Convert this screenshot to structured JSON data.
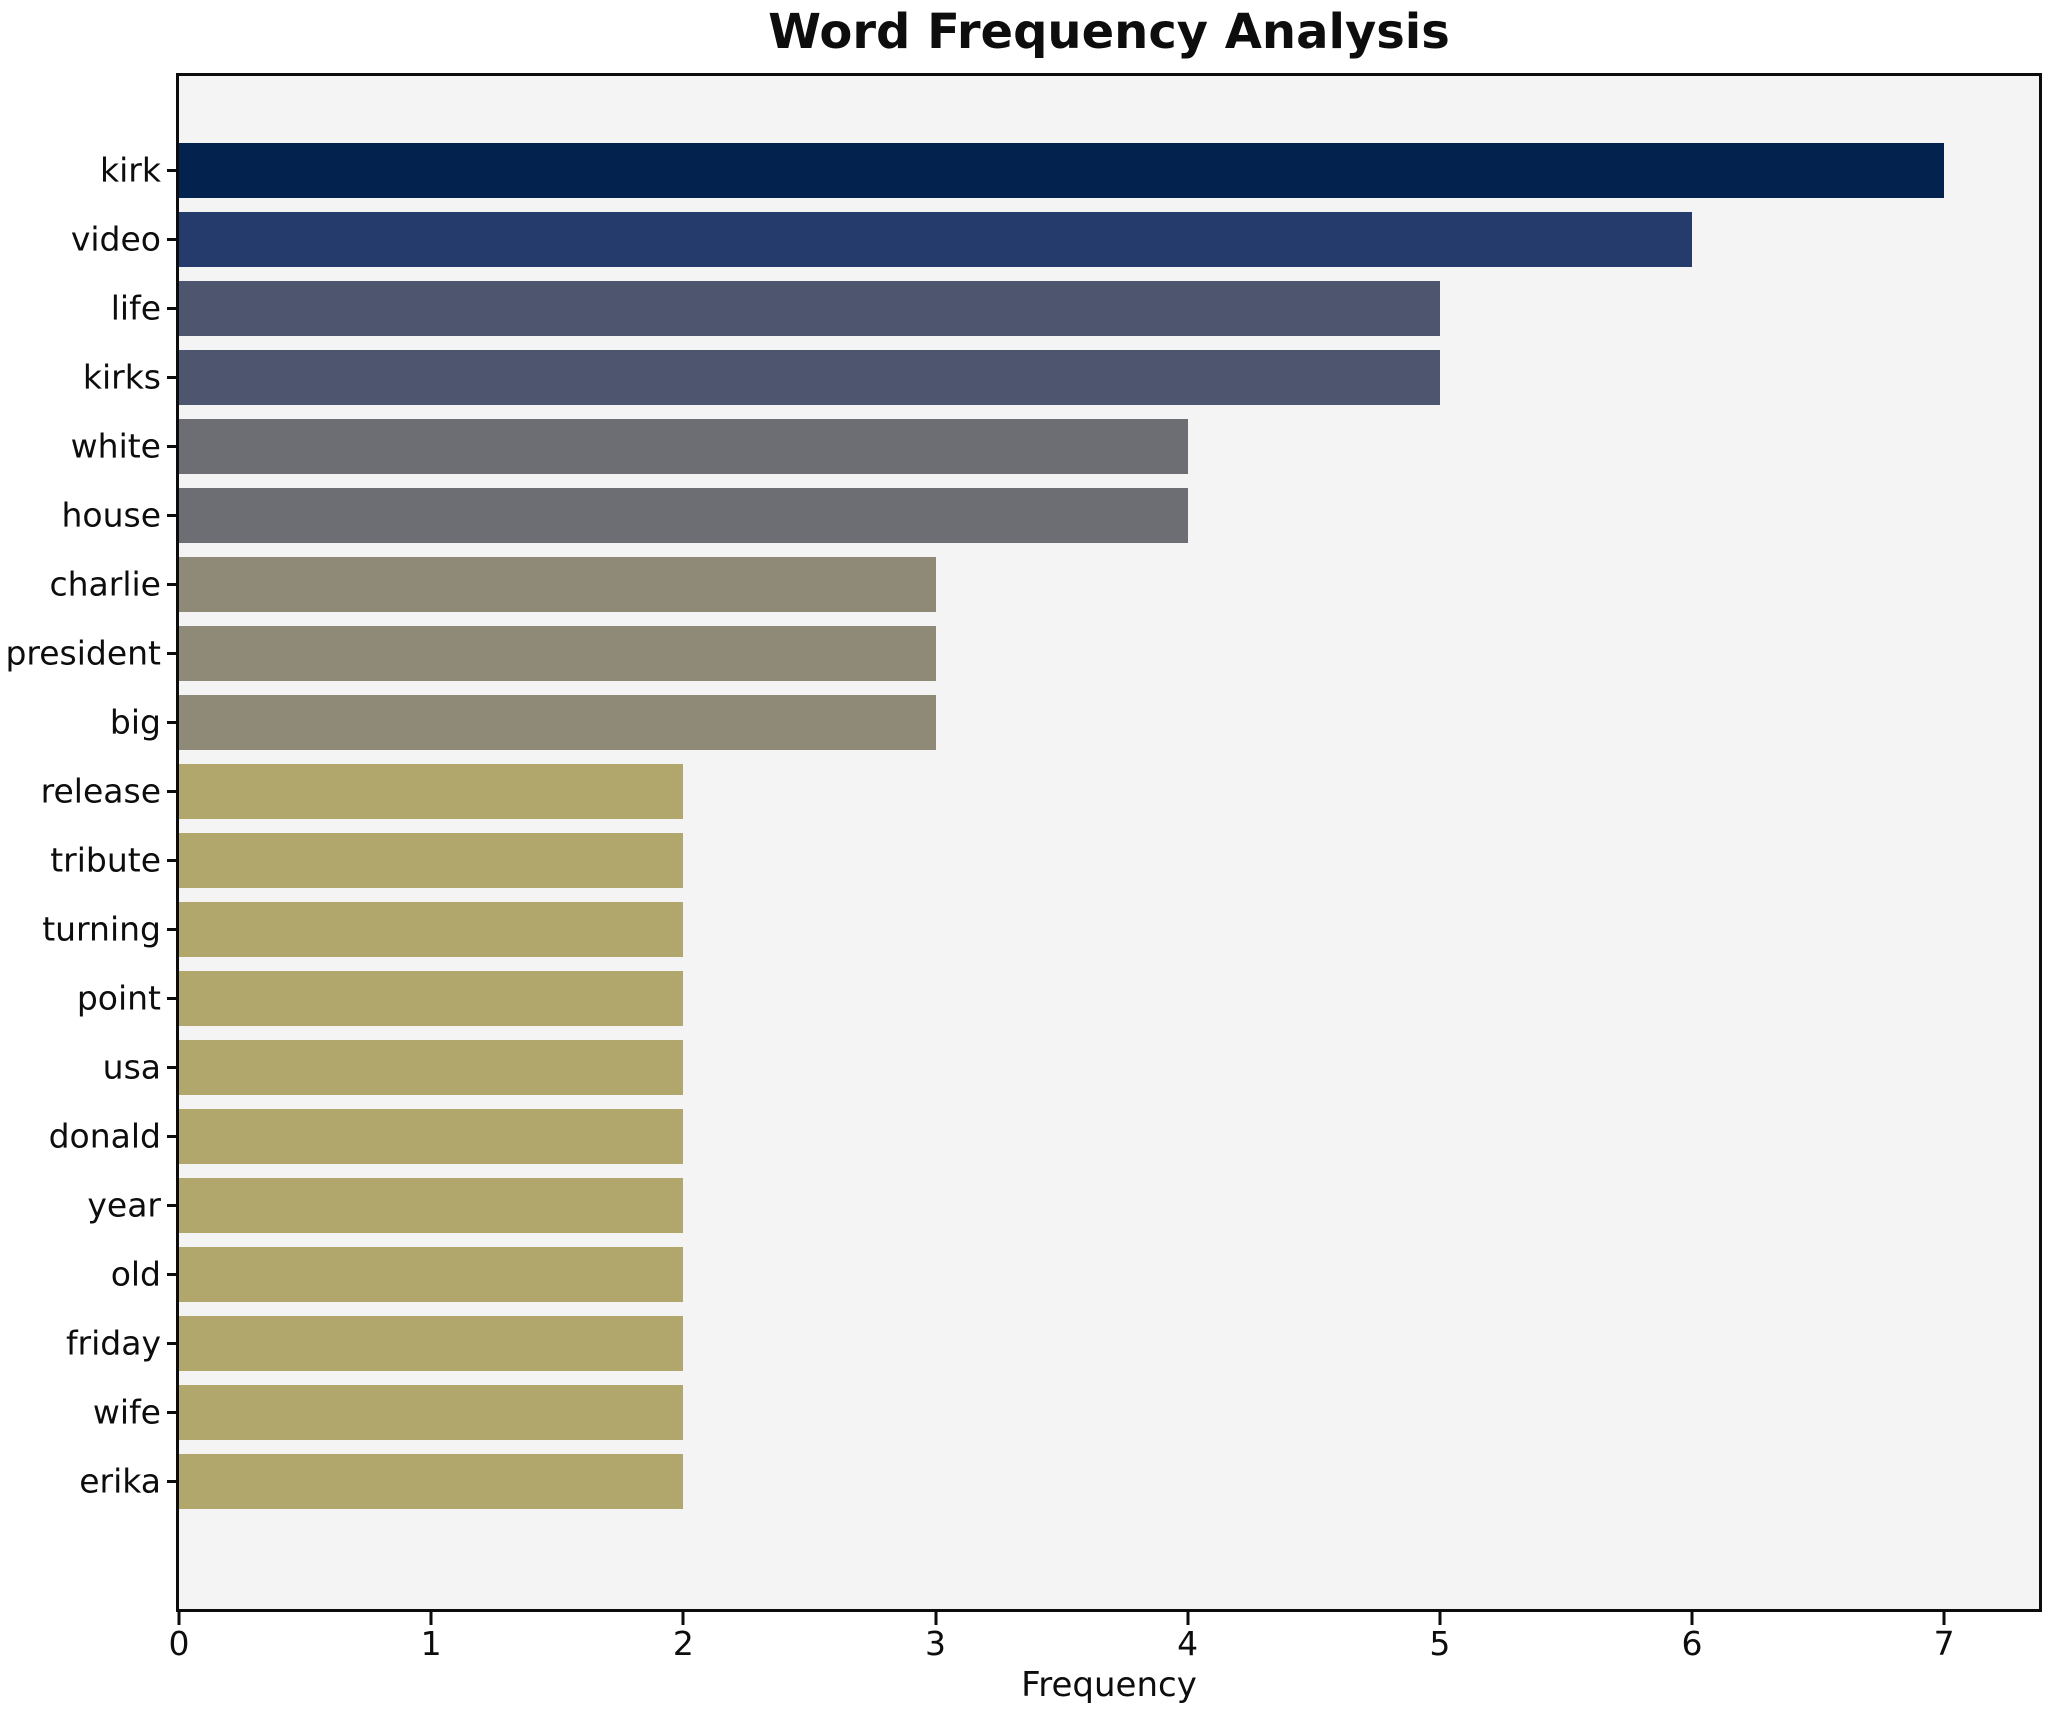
{
  "title": "Word Frequency Analysis",
  "chart_data": {
    "type": "bar",
    "orientation": "horizontal",
    "title": "Word Frequency Analysis",
    "xlabel": "Frequency",
    "ylabel": "",
    "categories": [
      "kirk",
      "video",
      "life",
      "kirks",
      "white",
      "house",
      "charlie",
      "president",
      "big",
      "release",
      "tribute",
      "turning",
      "point",
      "usa",
      "donald",
      "year",
      "old",
      "friday",
      "wife",
      "erika"
    ],
    "values": [
      7,
      6,
      5,
      5,
      4,
      4,
      3,
      3,
      3,
      2,
      2,
      2,
      2,
      2,
      2,
      2,
      2,
      2,
      2,
      2
    ],
    "bar_colors": [
      "#03234e",
      "#243b6b",
      "#4d556f",
      "#4d556f",
      "#6d6e73",
      "#6d6e73",
      "#8f8977",
      "#8f8977",
      "#8f8977",
      "#b1a76c",
      "#b1a76c",
      "#b1a76c",
      "#b1a76c",
      "#b1a76c",
      "#b1a76c",
      "#b1a76c",
      "#b1a76c",
      "#b1a76c",
      "#b1a76c",
      "#b1a76c"
    ],
    "xticks": [
      0,
      1,
      2,
      3,
      4,
      5,
      6,
      7
    ],
    "xlim": [
      0,
      7.376
    ],
    "grid": false,
    "legend_position": "none",
    "colors": {
      "plot_background": "#f4f4f5",
      "figure_background": "#ffffff",
      "spine": "#0c0c0c",
      "text": "#0d0d0d"
    }
  }
}
